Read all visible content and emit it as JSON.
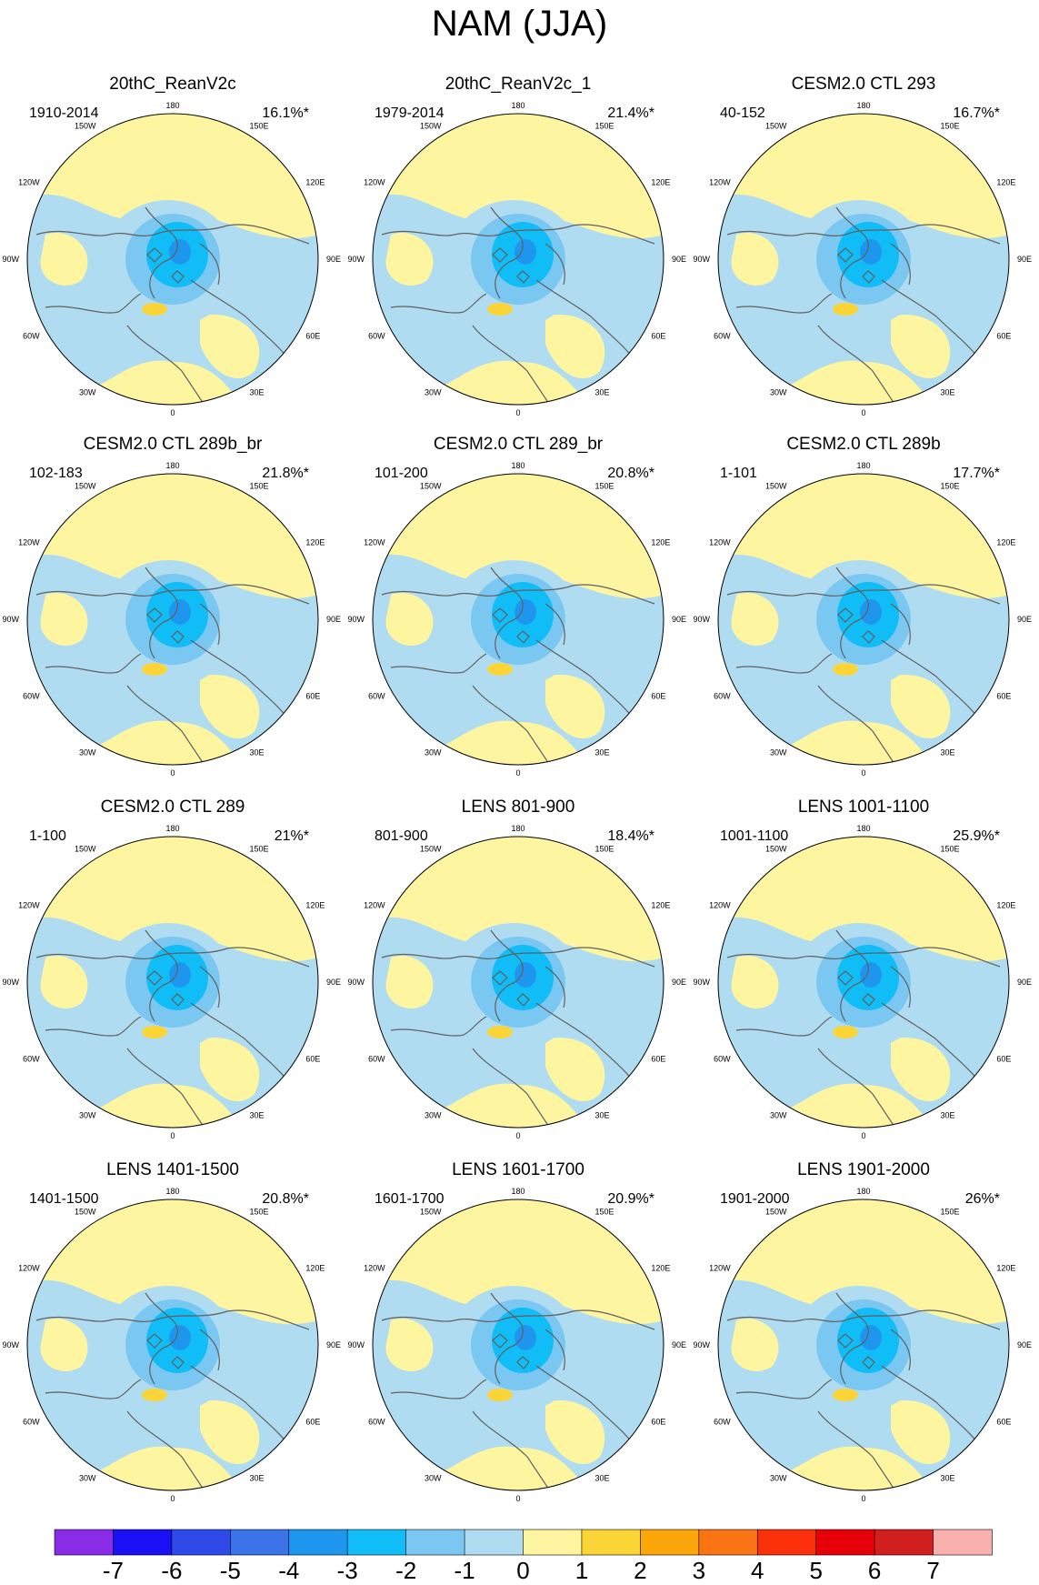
{
  "title": "NAM (JJA)",
  "colors": {
    "zero_pos": "#fdf5a0",
    "zero_neg": "#b0dcf1",
    "level_1_neg": "#7ac7f2",
    "level_2_neg": "#10bdf6",
    "level_3_neg": "#1f96ee",
    "level_1_pos": "#fbd437",
    "coast": "#606060"
  },
  "longitude_labels": [
    "180",
    "150E",
    "120E",
    "90E",
    "60E",
    "30E",
    "0",
    "30W",
    "60W",
    "90W",
    "120W",
    "150W"
  ],
  "panels": [
    {
      "title": "20thC_ReanV2c",
      "period": "1910-2014",
      "percent": "16.1%*"
    },
    {
      "title": "20thC_ReanV2c_1",
      "period": "1979-2014",
      "percent": "21.4%*"
    },
    {
      "title": "CESM2.0 CTL 293",
      "period": "40-152",
      "percent": "16.7%*"
    },
    {
      "title": "CESM2.0 CTL 289b_br",
      "period": "102-183",
      "percent": "21.8%*"
    },
    {
      "title": "CESM2.0 CTL 289_br",
      "period": "101-200",
      "percent": "20.8%*"
    },
    {
      "title": "CESM2.0 CTL 289b",
      "period": "1-101",
      "percent": "17.7%*"
    },
    {
      "title": "CESM2.0 CTL 289",
      "period": "1-100",
      "percent": "21%*"
    },
    {
      "title": "LENS 801-900",
      "period": "801-900",
      "percent": "18.4%*"
    },
    {
      "title": "LENS 1001-1100",
      "period": "1001-1100",
      "percent": "25.9%*"
    },
    {
      "title": "LENS 1401-1500",
      "period": "1401-1500",
      "percent": "20.8%*"
    },
    {
      "title": "LENS 1601-1700",
      "period": "1601-1700",
      "percent": "20.9%*"
    },
    {
      "title": "LENS 1901-2000",
      "period": "1901-2000",
      "percent": "26%*"
    }
  ],
  "colorbar": {
    "labels": [
      "-7",
      "-6",
      "-5",
      "-4",
      "-3",
      "-2",
      "-1",
      "0",
      "1",
      "2",
      "3",
      "4",
      "5",
      "6",
      "7"
    ],
    "colors": [
      "#8a2be8",
      "#1a10f5",
      "#2e4ae8",
      "#3a74e8",
      "#1f96ee",
      "#10bdf6",
      "#7ac7f2",
      "#b0dcf1",
      "#fdf5a0",
      "#fbd437",
      "#fba70b",
      "#fa7414",
      "#fa3009",
      "#e8000b",
      "#d11e1e",
      "#fbb0b0"
    ]
  }
}
